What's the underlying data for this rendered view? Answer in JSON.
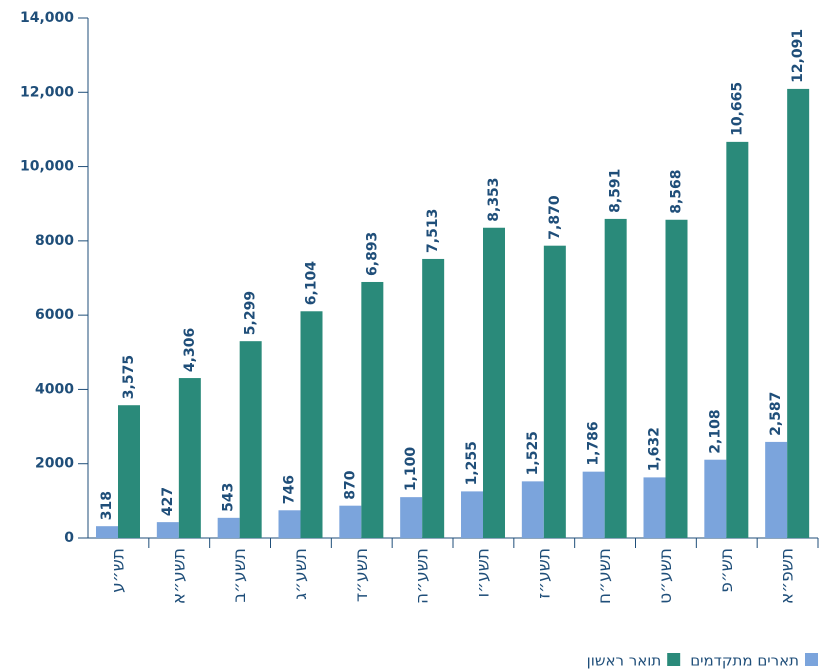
{
  "chart_data": {
    "type": "bar",
    "categories": [
      "תש״ע",
      "תשע״א",
      "תשע״ב",
      "תשע״ג",
      "תשע״ד",
      "תשע״ה",
      "תשע״ו",
      "תשע״ז",
      "תשע״ח",
      "תשע״ט",
      "תש״פ",
      "תשפ״א"
    ],
    "series": [
      {
        "name": "תארים מתקדמים",
        "color": "#7ba4dc",
        "values": [
          318,
          427,
          543,
          746,
          870,
          1100,
          1255,
          1525,
          1786,
          1632,
          2108,
          2587
        ],
        "value_labels": [
          "318",
          "427",
          "543",
          "746",
          "870",
          "1,100",
          "1,255",
          "1,525",
          "1,786",
          "1,632",
          "2,108",
          "2,587"
        ]
      },
      {
        "name": "תואר ראשון",
        "color": "#2a8a7a",
        "values": [
          3575,
          4306,
          5299,
          6104,
          6893,
          7513,
          8353,
          7870,
          8591,
          8568,
          10665,
          12091
        ],
        "value_labels": [
          "3,575",
          "4,306",
          "5,299",
          "6,104",
          "6,893",
          "7,513",
          "8,353",
          "7,870",
          "8,591",
          "8,568",
          "10,665",
          "12,091"
        ]
      }
    ],
    "ylim": [
      0,
      14000
    ],
    "yticks": [
      0,
      2000,
      4000,
      6000,
      8000,
      {
        "value": 10000,
        "label": "10,000"
      },
      {
        "value": 12000,
        "label": "12,000"
      },
      {
        "value": 14000,
        "label": "14,000"
      }
    ]
  }
}
